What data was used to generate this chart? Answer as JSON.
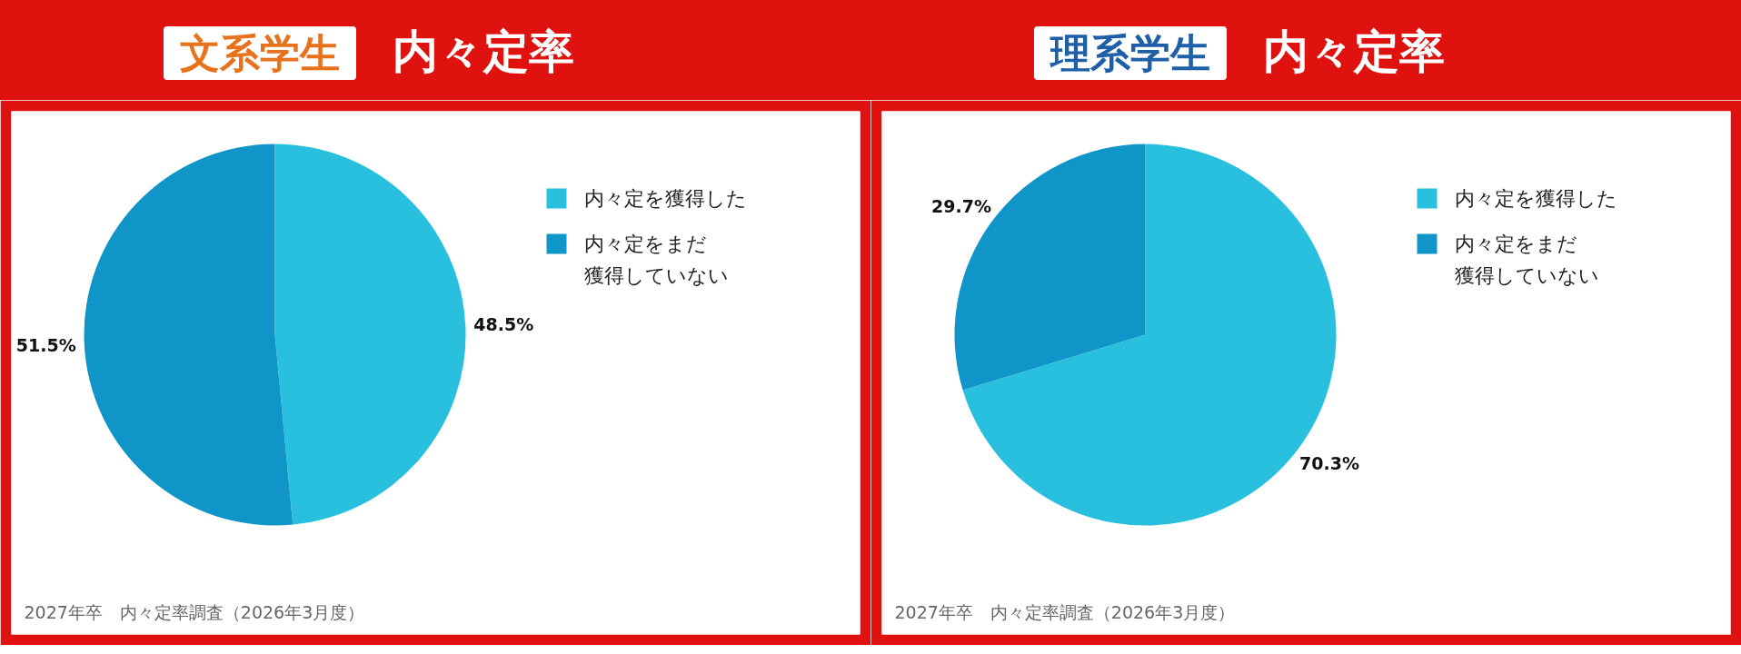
{
  "chart_data": [
    {
      "type": "pie",
      "title": "文系学生",
      "subtitle": "内々定率",
      "categories": [
        "内々定を獲得した",
        "内々定をまだ獲得していない"
      ],
      "values": [
        48.5,
        51.5
      ],
      "colors": [
        "#29c0e0",
        "#0f95c8"
      ],
      "value_labels": [
        "48.5%",
        "51.5%"
      ],
      "legend": "right",
      "annotations": [
        "2027年卒　内々定率調査（2026年3月度）"
      ]
    },
    {
      "type": "pie",
      "title": "理系学生",
      "subtitle": "内々定率",
      "categories": [
        "内々定を獲得した",
        "内々定をまだ獲得していない"
      ],
      "values": [
        70.3,
        29.7
      ],
      "colors": [
        "#29c0e0",
        "#0f95c8"
      ],
      "value_labels": [
        "70.3%",
        "29.7%"
      ],
      "legend": "right",
      "annotations": [
        "2027年卒　内々定率調査（2026年3月度）"
      ]
    }
  ]
}
